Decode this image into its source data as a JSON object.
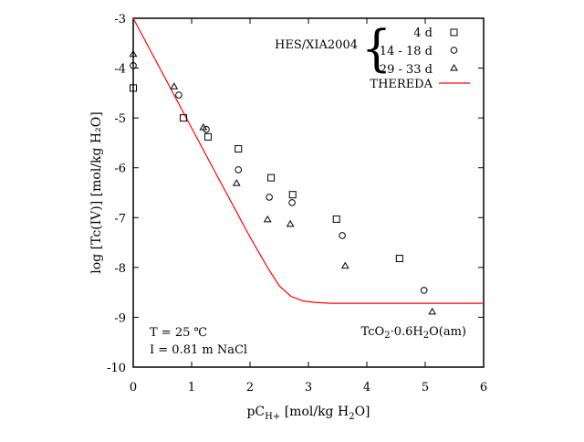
{
  "chart_data": {
    "type": "scatter",
    "xlabel": {
      "main": "pC",
      "sub": "H+",
      "rest": " [mol/kg H",
      "sub2": "2",
      "end": "O]"
    },
    "ylabel": "log [Tc(IV)] [mol/kg H₂O]",
    "xlim": [
      0,
      6
    ],
    "ylim": [
      -10,
      -3
    ],
    "xticks": [
      "0",
      "1",
      "2",
      "3",
      "4",
      "5",
      "6"
    ],
    "yticks": [
      "-3",
      "-4",
      "-5",
      "-6",
      "-7",
      "-8",
      "-9",
      "-10"
    ],
    "grid": false,
    "legend": {
      "placement": "top-right",
      "group_label": "HES/XIA2004",
      "entries": [
        "4 d",
        "14 - 18 d",
        "29 - 33 d"
      ],
      "line_entry": "THEREDA"
    },
    "annotations": {
      "temperature": "T = 25 ℃",
      "ionic_strength": "I = 0.81 m NaCl",
      "phase": {
        "a": "TcO",
        "b": "2",
        "c": "·0.6H",
        "d": "2",
        "e": "O(am)"
      }
    },
    "series": [
      {
        "name": "4 d",
        "marker": "square",
        "x": [
          0,
          0.86,
          1.28,
          1.8,
          2.36,
          2.73,
          3.48,
          4.56
        ],
        "y": [
          -4.4,
          -5.0,
          -5.38,
          -5.62,
          -6.2,
          -6.54,
          -7.03,
          -7.82
        ]
      },
      {
        "name": "14 - 18 d",
        "marker": "circle",
        "x": [
          0,
          0.78,
          1.25,
          1.8,
          2.33,
          2.72,
          3.58,
          4.98
        ],
        "y": [
          -3.95,
          -4.54,
          -5.23,
          -6.04,
          -6.59,
          -6.7,
          -7.36,
          -8.46
        ]
      },
      {
        "name": "29 - 33 d",
        "marker": "triangle",
        "x": [
          0,
          0.7,
          1.2,
          1.77,
          2.3,
          2.69,
          3.63,
          5.12
        ],
        "y": [
          -3.71,
          -4.36,
          -5.18,
          -6.3,
          -7.03,
          -7.12,
          -7.96,
          -8.88
        ]
      },
      {
        "name": "THEREDA",
        "type": "line",
        "color": "#ff0000",
        "x": [
          0,
          0.5,
          1.0,
          1.5,
          2.0,
          2.3,
          2.5,
          2.7,
          2.9,
          3.1,
          3.4,
          4.0,
          5.0,
          6.0
        ],
        "y": [
          -3.0,
          -4.1,
          -5.2,
          -6.3,
          -7.39,
          -8.0,
          -8.37,
          -8.58,
          -8.67,
          -8.7,
          -8.72,
          -8.72,
          -8.72,
          -8.72
        ]
      }
    ]
  }
}
